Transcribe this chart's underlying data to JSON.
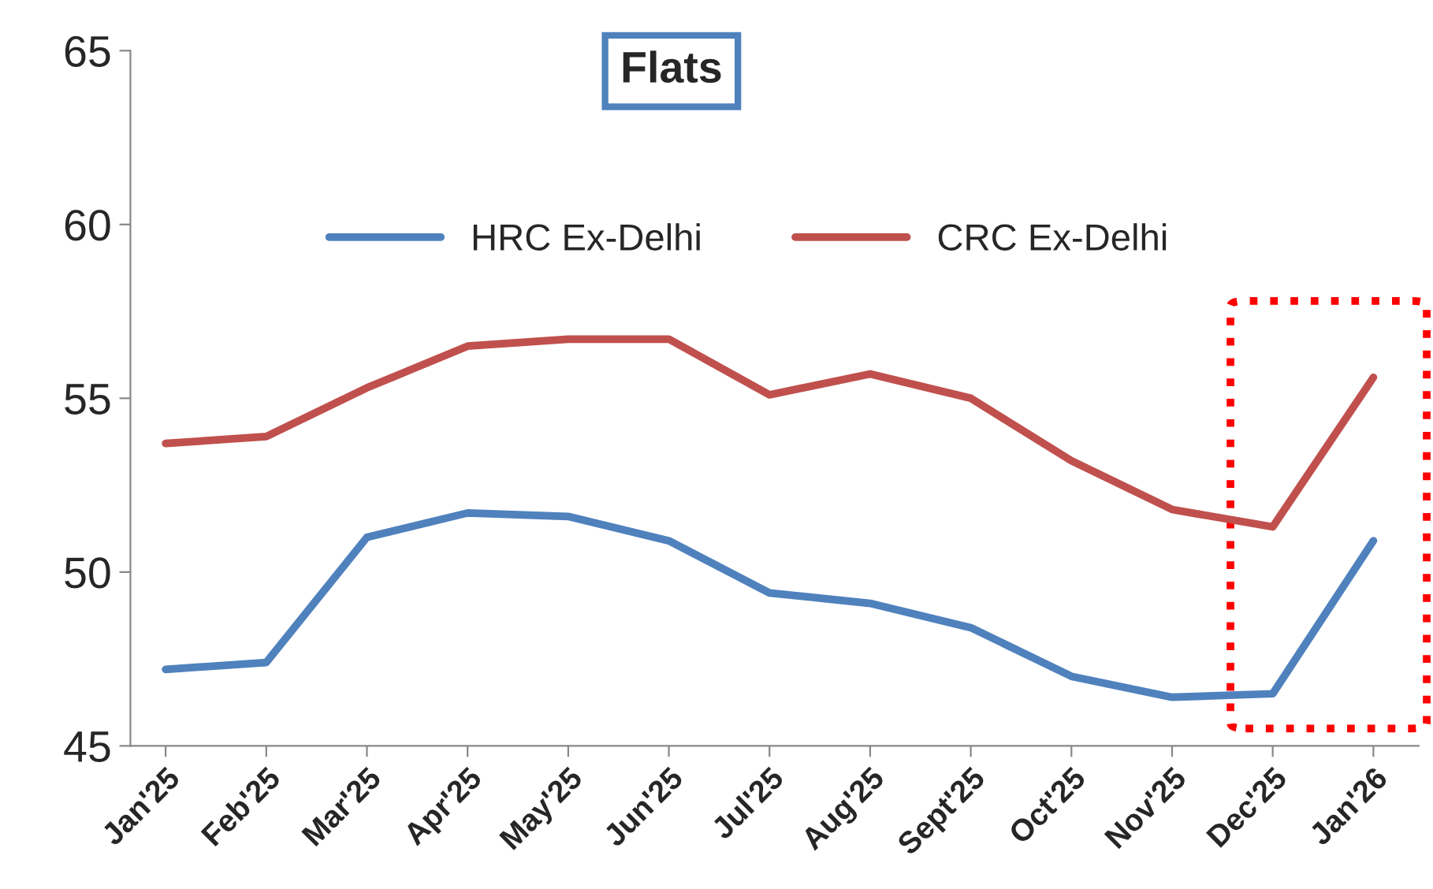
{
  "chart_data": {
    "type": "line",
    "title": "Flats",
    "categories": [
      "Jan'25",
      "Feb'25",
      "Mar'25",
      "Apr'25",
      "May'25",
      "Jun'25",
      "Jul'25",
      "Aug'25",
      "Sept'25",
      "Oct'25",
      "Nov'25",
      "Dec'25",
      "Jan'26"
    ],
    "series": [
      {
        "name": "HRC Ex-Delhi",
        "color": "#4f81bd",
        "values": [
          47.2,
          47.4,
          51.0,
          51.7,
          51.6,
          50.9,
          49.4,
          49.1,
          48.4,
          47.0,
          46.4,
          46.5,
          50.9
        ]
      },
      {
        "name": "CRC Ex-Delhi",
        "color": "#c0504d",
        "values": [
          53.7,
          53.9,
          55.3,
          56.5,
          56.7,
          56.7,
          55.1,
          55.7,
          55.0,
          53.2,
          51.8,
          51.3,
          55.6
        ]
      }
    ],
    "ylim": [
      45,
      65
    ],
    "yticks": [
      45,
      50,
      55,
      60,
      65
    ],
    "grid": false,
    "legend": "top",
    "marker": "none",
    "line_style": "solid"
  }
}
